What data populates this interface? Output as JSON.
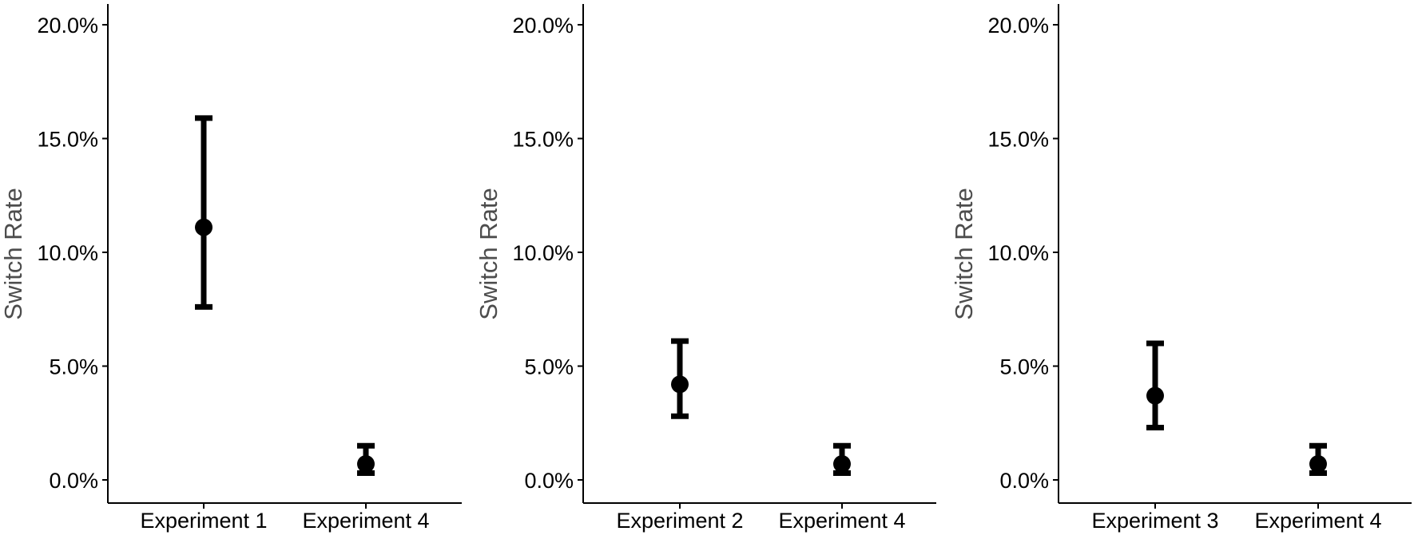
{
  "chart_data": [
    {
      "type": "errorbar",
      "ylabel": "Switch Rate",
      "xlabel": "",
      "ylim": [
        0,
        0.2
      ],
      "yticks": [
        0,
        0.05,
        0.1,
        0.15,
        0.2
      ],
      "ytick_labels": [
        "0.0%",
        "5.0%",
        "10.0%",
        "15.0%",
        "20.0%"
      ],
      "categories": [
        "Experiment 1",
        "Experiment 4"
      ],
      "values": [
        0.111,
        0.007
      ],
      "error_low": [
        0.076,
        0.003
      ],
      "error_high": [
        0.159,
        0.015
      ],
      "grid": false,
      "legend": "none"
    },
    {
      "type": "errorbar",
      "ylabel": "Switch Rate",
      "xlabel": "",
      "ylim": [
        0,
        0.2
      ],
      "yticks": [
        0,
        0.05,
        0.1,
        0.15,
        0.2
      ],
      "ytick_labels": [
        "0.0%",
        "5.0%",
        "10.0%",
        "15.0%",
        "20.0%"
      ],
      "categories": [
        "Experiment 2",
        "Experiment 4"
      ],
      "values": [
        0.042,
        0.007
      ],
      "error_low": [
        0.028,
        0.003
      ],
      "error_high": [
        0.061,
        0.015
      ],
      "grid": false,
      "legend": "none"
    },
    {
      "type": "errorbar",
      "ylabel": "Switch Rate",
      "xlabel": "",
      "ylim": [
        0,
        0.2
      ],
      "yticks": [
        0,
        0.05,
        0.1,
        0.15,
        0.2
      ],
      "ytick_labels": [
        "0.0%",
        "5.0%",
        "10.0%",
        "15.0%",
        "20.0%"
      ],
      "categories": [
        "Experiment 3",
        "Experiment 4"
      ],
      "values": [
        0.037,
        0.007
      ],
      "error_low": [
        0.023,
        0.003
      ],
      "error_high": [
        0.06,
        0.015
      ],
      "grid": false,
      "legend": "none"
    }
  ]
}
